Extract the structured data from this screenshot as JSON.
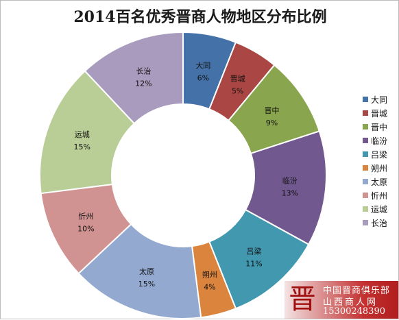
{
  "chart_data": {
    "type": "pie",
    "variant": "donut",
    "title": "2014百名优秀晋商人物地区分布比例",
    "categories": [
      "大同",
      "晋城",
      "晋中",
      "临汾",
      "吕梁",
      "朔州",
      "太原",
      "忻州",
      "运城",
      "长治"
    ],
    "values": [
      6,
      5,
      9,
      13,
      11,
      4,
      15,
      10,
      15,
      12
    ],
    "labels": [
      "6%",
      "5%",
      "9%",
      "13%",
      "11%",
      "4%",
      "15%",
      "10%",
      "15%",
      "12%"
    ],
    "colors": [
      "#4472a8",
      "#aa4643",
      "#89a54e",
      "#71588f",
      "#4198af",
      "#db843d",
      "#93a9cf",
      "#d19392",
      "#b9cd96",
      "#a99bbd"
    ],
    "legend_position": "right"
  },
  "watermark": {
    "logo_glyph": "晋",
    "line1": "中国晋商俱乐部",
    "line2": "山西商人网",
    "line3": "15300248390"
  }
}
